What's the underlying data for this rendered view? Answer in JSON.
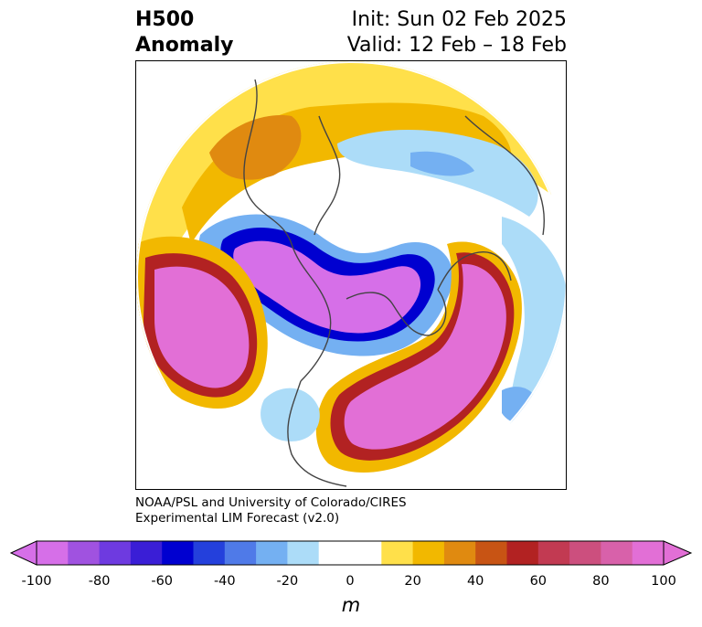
{
  "title": {
    "left_line1": "H500",
    "left_line2": "Anomaly",
    "init": "Init: Sun 02 Feb 2025",
    "valid": "Valid: 12 Feb – 18 Feb"
  },
  "credit": {
    "line1": "NOAA/PSL and University of Colorado/CIRES",
    "line2": "Experimental LIM Forecast (v2.0)"
  },
  "colorbar": {
    "unit": "m",
    "ticks": [
      "-100",
      "-80",
      "-60",
      "-40",
      "-20",
      "0",
      "20",
      "40",
      "60",
      "80",
      "100"
    ],
    "under_color": "#d66fe8",
    "over_color": "#e26fd6",
    "colors": [
      "#d66fe8",
      "#a052e0",
      "#6e3ae0",
      "#3a1ed6",
      "#0000d0",
      "#2440dc",
      "#4f7ae8",
      "#74b0f2",
      "#acdcf8",
      "#ffffff",
      "#ffffff",
      "#ffe04a",
      "#f2b800",
      "#e08a10",
      "#c85414",
      "#b22222",
      "#c23a52",
      "#cc4f7e",
      "#d861aa",
      "#e26fd6"
    ]
  },
  "map": {
    "projection": "north-polar-stereographic",
    "variable": "500 hPa geopotential height anomaly"
  }
}
